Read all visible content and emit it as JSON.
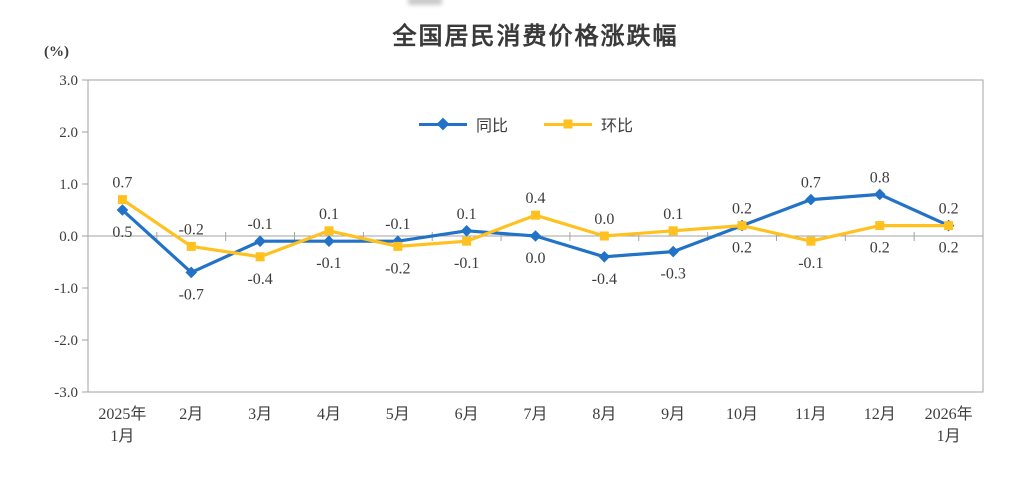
{
  "chart_data": {
    "type": "line",
    "title": "全国居民消费价格涨跌幅",
    "ylabel": "(%)",
    "xlabel": "",
    "ylim": [
      -3.0,
      3.0
    ],
    "yticks": [
      3.0,
      2.0,
      1.0,
      0.0,
      -1.0,
      -2.0,
      -3.0
    ],
    "grid": "zero-line-only",
    "legend_position": "top-center-inside",
    "categories": [
      [
        "2025年",
        "1月"
      ],
      [
        "2月"
      ],
      [
        "3月"
      ],
      [
        "4月"
      ],
      [
        "5月"
      ],
      [
        "6月"
      ],
      [
        "7月"
      ],
      [
        "8月"
      ],
      [
        "9月"
      ],
      [
        "10月"
      ],
      [
        "11月"
      ],
      [
        "12月"
      ],
      [
        "2026年",
        "1月"
      ]
    ],
    "series": [
      {
        "name": "同比",
        "marker": "diamond",
        "color": "#2272C8",
        "values": [
          0.5,
          -0.7,
          -0.1,
          -0.1,
          -0.1,
          0.1,
          0.0,
          -0.4,
          -0.3,
          0.2,
          0.7,
          0.8,
          0.2
        ],
        "labels": [
          "0.5",
          "-0.7",
          "-0.1",
          "-0.1",
          "-0.1",
          "0.1",
          "0.0",
          "-0.4",
          "-0.3",
          "0.2",
          "0.7",
          "0.8",
          "0.2"
        ]
      },
      {
        "name": "环比",
        "marker": "square",
        "color": "#FFC120",
        "values": [
          0.7,
          -0.2,
          -0.4,
          0.1,
          -0.2,
          -0.1,
          0.4,
          0.0,
          0.1,
          0.2,
          -0.1,
          0.2,
          0.2
        ],
        "labels": [
          "0.7",
          "-0.2",
          "-0.4",
          "0.1",
          "-0.2",
          "-0.1",
          "0.4",
          "0.0",
          "0.1",
          "0.2",
          "-0.1",
          "0.2",
          "0.2"
        ]
      }
    ],
    "colors": {
      "axis": "#A3A3A3",
      "label": "#3D3D3D",
      "title": "#3A3A3A"
    }
  }
}
